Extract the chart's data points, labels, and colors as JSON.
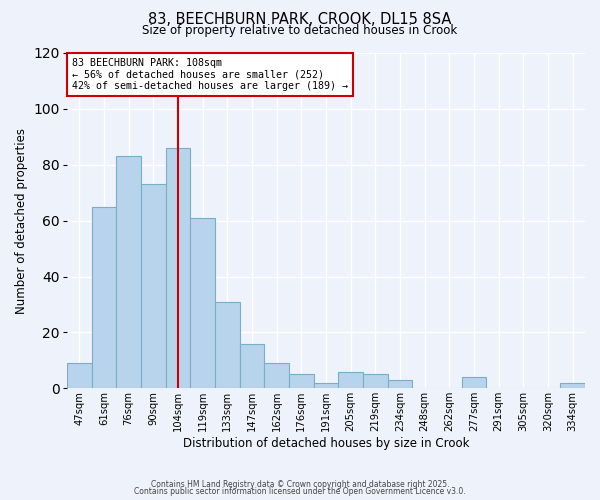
{
  "title": "83, BEECHBURN PARK, CROOK, DL15 8SA",
  "subtitle": "Size of property relative to detached houses in Crook",
  "xlabel": "Distribution of detached houses by size in Crook",
  "ylabel": "Number of detached properties",
  "categories": [
    "47sqm",
    "61sqm",
    "76sqm",
    "90sqm",
    "104sqm",
    "119sqm",
    "133sqm",
    "147sqm",
    "162sqm",
    "176sqm",
    "191sqm",
    "205sqm",
    "219sqm",
    "234sqm",
    "248sqm",
    "262sqm",
    "277sqm",
    "291sqm",
    "305sqm",
    "320sqm",
    "334sqm"
  ],
  "values": [
    9,
    65,
    83,
    73,
    86,
    61,
    31,
    16,
    9,
    5,
    2,
    6,
    5,
    3,
    0,
    0,
    4,
    0,
    0,
    0,
    2
  ],
  "bar_color": "#b8d4ec",
  "bar_edge_color": "#7aaec8",
  "vline_x": 4,
  "vline_color": "#cc0000",
  "annotation_text": "83 BEECHBURN PARK: 108sqm\n← 56% of detached houses are smaller (252)\n42% of semi-detached houses are larger (189) →",
  "annotation_box_color": "#ffffff",
  "annotation_box_edge": "#cc0000",
  "ylim": [
    0,
    120
  ],
  "yticks": [
    0,
    20,
    40,
    60,
    80,
    100,
    120
  ],
  "background_color": "#eef2fa",
  "grid_color": "#ffffff",
  "footer1": "Contains HM Land Registry data © Crown copyright and database right 2025.",
  "footer2": "Contains public sector information licensed under the Open Government Licence v3.0."
}
